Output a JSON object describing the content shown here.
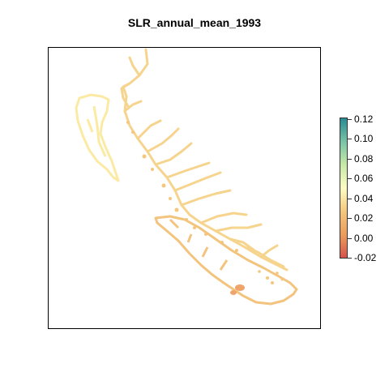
{
  "title": "SLR_annual_mean_1993",
  "legend": {
    "ticks": [
      "0.12",
      "0.10",
      "0.08",
      "0.06",
      "0.04",
      "0.02",
      "0.00",
      "-0.02"
    ],
    "colors": [
      "#2a8a91",
      "#7cc3a7",
      "#c6e7a8",
      "#fdfdc4",
      "#f4c77e",
      "#ea9b5c",
      "#d4534a"
    ]
  },
  "palette": {
    "outer_coast": "#fbeaa4",
    "mainland": "#f6d48e",
    "strait": "#f2c47e",
    "hotspot": "#eea46a"
  }
}
